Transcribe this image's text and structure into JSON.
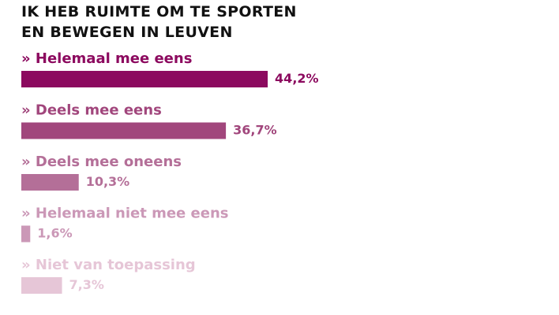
{
  "chart_data": {
    "type": "bar",
    "orientation": "horizontal",
    "title": "IK HEB RUIMTE OM TE SPORTEN EN BEWEGEN IN LEUVEN",
    "categories": [
      "» Helemaal mee eens",
      "» Deels mee eens",
      "» Deels mee oneens",
      "» Helemaal niet mee eens",
      "» Niet van toepassing"
    ],
    "values": [
      44.2,
      36.7,
      10.3,
      1.6,
      7.3
    ],
    "value_labels": [
      "44,2%",
      "36,7%",
      "10,3%",
      "1,6%",
      "7,3%"
    ],
    "colors": [
      "#8c0a5f",
      "#a1467c",
      "#b46f98",
      "#cb98b7",
      "#e6c6d7"
    ]
  }
}
